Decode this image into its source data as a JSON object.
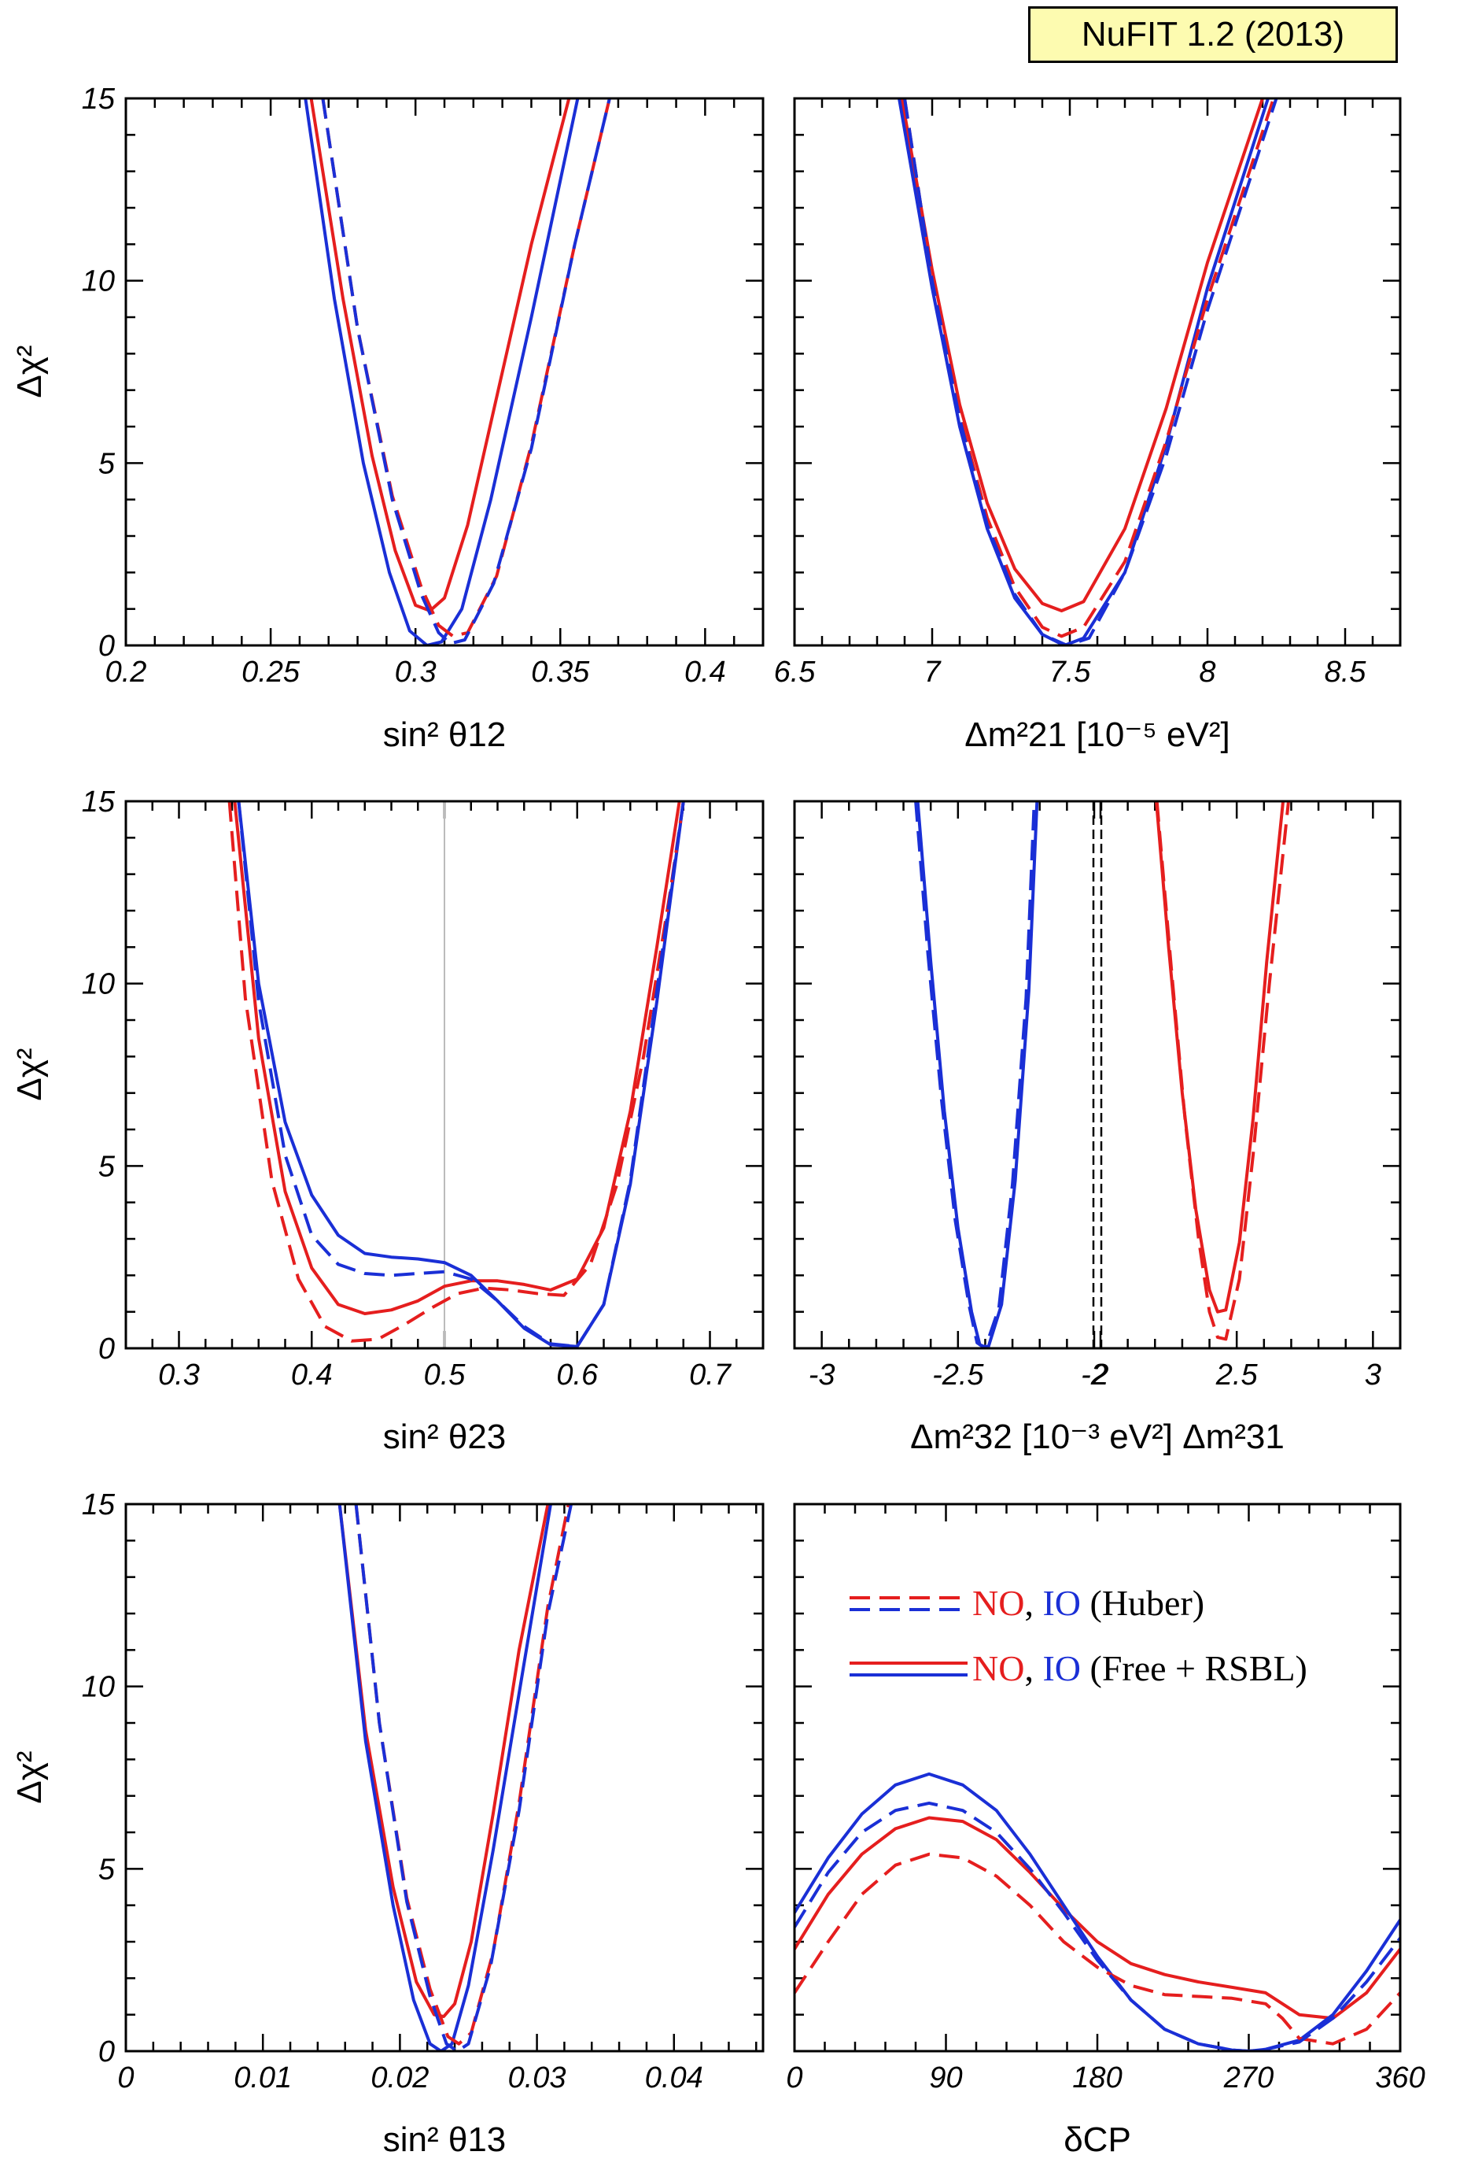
{
  "badge": "NuFIT 1.2 (2013)",
  "colors": {
    "NO": "#e51e1e",
    "IO": "#1a2fd6",
    "axis": "#000000",
    "reference": "#bbbbbb"
  },
  "legend": {
    "huber": {
      "no": "NO",
      "sep": ", ",
      "io": "IO",
      "tag": " (Huber)"
    },
    "free": {
      "no": "NO",
      "sep": ", ",
      "io": "IO",
      "tag": " (Free + RSBL)"
    }
  },
  "chart_data": [
    {
      "id": "s12",
      "type": "line",
      "xlabel": "sin² θ12",
      "ylabel": "Δχ²",
      "xlim": [
        0.2,
        0.42
      ],
      "ylim": [
        0,
        15
      ],
      "xticks": [
        0.2,
        0.25,
        0.3,
        0.35,
        0.4
      ],
      "xtick_labels": [
        "0.2",
        "0.25",
        "0.3",
        "0.35",
        "0.4"
      ],
      "yticks": [
        0,
        5,
        10,
        15
      ],
      "ytick_labels": [
        "0",
        "5",
        "10",
        "15"
      ],
      "series": [
        {
          "group": "NO",
          "style": "solid",
          "x": [
            0.264,
            0.275,
            0.285,
            0.293,
            0.3,
            0.305,
            0.31,
            0.318,
            0.328,
            0.34,
            0.353
          ],
          "y": [
            15,
            9.5,
            5.2,
            2.6,
            1.1,
            0.95,
            1.3,
            3.3,
            6.8,
            11.0,
            15
          ]
        },
        {
          "group": "IO",
          "style": "solid",
          "x": [
            0.262,
            0.272,
            0.282,
            0.291,
            0.298,
            0.304,
            0.309,
            0.316,
            0.326,
            0.34,
            0.356
          ],
          "y": [
            15,
            9.5,
            5.0,
            2.0,
            0.4,
            0.0,
            0.1,
            1.0,
            4.0,
            9.0,
            15
          ]
        },
        {
          "group": "NO",
          "style": "dashed",
          "x": [
            0.268,
            0.28,
            0.292,
            0.302,
            0.308,
            0.313,
            0.318,
            0.328,
            0.34,
            0.355,
            0.367
          ],
          "y": [
            15,
            8.7,
            4.1,
            1.6,
            0.55,
            0.25,
            0.35,
            1.9,
            5.5,
            11.0,
            15
          ]
        },
        {
          "group": "IO",
          "style": "dashed",
          "x": [
            0.268,
            0.28,
            0.292,
            0.302,
            0.308,
            0.312,
            0.317,
            0.327,
            0.34,
            0.355,
            0.367
          ],
          "y": [
            15,
            8.7,
            4.0,
            1.4,
            0.35,
            0.05,
            0.15,
            1.7,
            5.4,
            11.0,
            15
          ]
        }
      ]
    },
    {
      "id": "dm21",
      "type": "line",
      "xlabel": "Δm²21 [10⁻⁵ eV²]",
      "ylabel": "",
      "xlim": [
        6.5,
        8.7
      ],
      "ylim": [
        0,
        15
      ],
      "xticks": [
        6.5,
        7,
        7.5,
        8,
        8.5
      ],
      "xtick_labels": [
        "6.5",
        "7",
        "7.5",
        "8",
        "8.5"
      ],
      "yticks": [
        0,
        5,
        10,
        15
      ],
      "ytick_labels": [
        "",
        "",
        "",
        ""
      ],
      "series": [
        {
          "group": "NO",
          "style": "solid",
          "x": [
            6.89,
            7.0,
            7.1,
            7.2,
            7.3,
            7.4,
            7.47,
            7.55,
            7.7,
            7.85,
            8.0,
            8.2
          ],
          "y": [
            15,
            10.3,
            6.6,
            3.9,
            2.1,
            1.15,
            0.95,
            1.2,
            3.2,
            6.5,
            10.5,
            15
          ]
        },
        {
          "group": "IO",
          "style": "solid",
          "x": [
            6.88,
            7.0,
            7.1,
            7.2,
            7.3,
            7.4,
            7.48,
            7.55,
            7.7,
            7.85,
            8.0,
            8.22
          ],
          "y": [
            15,
            9.8,
            6.0,
            3.2,
            1.3,
            0.3,
            0.0,
            0.2,
            2.0,
            5.5,
            9.8,
            15
          ]
        },
        {
          "group": "NO",
          "style": "dashed",
          "x": [
            6.9,
            7.0,
            7.1,
            7.2,
            7.3,
            7.4,
            7.47,
            7.55,
            7.7,
            7.85,
            8.0,
            8.24
          ],
          "y": [
            15,
            10.0,
            6.3,
            3.5,
            1.6,
            0.5,
            0.25,
            0.5,
            2.3,
            5.6,
            9.5,
            15
          ]
        },
        {
          "group": "IO",
          "style": "dashed",
          "x": [
            6.9,
            7.0,
            7.1,
            7.2,
            7.3,
            7.4,
            7.49,
            7.57,
            7.7,
            7.85,
            8.0,
            8.25
          ],
          "y": [
            15,
            10.0,
            6.2,
            3.3,
            1.4,
            0.3,
            0.0,
            0.2,
            2.0,
            5.2,
            9.2,
            15
          ]
        }
      ]
    },
    {
      "id": "s23",
      "type": "line",
      "xlabel": "sin² θ23",
      "ylabel": "Δχ²",
      "xlim": [
        0.26,
        0.74
      ],
      "ylim": [
        0,
        15
      ],
      "xticks": [
        0.3,
        0.4,
        0.5,
        0.6,
        0.7
      ],
      "xtick_labels": [
        "0.3",
        "0.4",
        "0.5",
        "0.6",
        "0.7"
      ],
      "yticks": [
        0,
        5,
        10,
        15
      ],
      "ytick_labels": [
        "0",
        "5",
        "10",
        "15"
      ],
      "vline": 0.5,
      "series": [
        {
          "group": "NO",
          "style": "solid",
          "x": [
            0.342,
            0.36,
            0.38,
            0.4,
            0.42,
            0.44,
            0.46,
            0.48,
            0.5,
            0.52,
            0.54,
            0.56,
            0.58,
            0.6,
            0.62,
            0.64,
            0.66,
            0.677
          ],
          "y": [
            15,
            8.5,
            4.3,
            2.2,
            1.2,
            0.95,
            1.05,
            1.3,
            1.7,
            1.85,
            1.85,
            1.75,
            1.6,
            1.9,
            3.3,
            6.5,
            11,
            15
          ]
        },
        {
          "group": "IO",
          "style": "solid",
          "x": [
            0.345,
            0.36,
            0.38,
            0.4,
            0.42,
            0.44,
            0.46,
            0.48,
            0.5,
            0.52,
            0.54,
            0.56,
            0.58,
            0.6,
            0.62,
            0.64,
            0.66,
            0.68
          ],
          "y": [
            15,
            10,
            6.2,
            4.2,
            3.1,
            2.6,
            2.5,
            2.45,
            2.35,
            2.0,
            1.3,
            0.55,
            0.1,
            0.05,
            1.2,
            4.5,
            9.5,
            15
          ]
        },
        {
          "group": "NO",
          "style": "dashed",
          "x": [
            0.338,
            0.35,
            0.37,
            0.39,
            0.41,
            0.43,
            0.45,
            0.47,
            0.49,
            0.51,
            0.53,
            0.55,
            0.57,
            0.59,
            0.61,
            0.63,
            0.65,
            0.67,
            0.68
          ],
          "y": [
            15,
            9.6,
            4.6,
            1.9,
            0.6,
            0.2,
            0.25,
            0.65,
            1.1,
            1.5,
            1.65,
            1.6,
            1.5,
            1.45,
            2.3,
            4.5,
            8.0,
            12.5,
            15
          ]
        },
        {
          "group": "IO",
          "style": "dashed",
          "x": [
            0.345,
            0.36,
            0.38,
            0.4,
            0.42,
            0.44,
            0.46,
            0.48,
            0.5,
            0.52,
            0.54,
            0.56,
            0.58,
            0.6,
            0.62,
            0.64,
            0.66,
            0.68
          ],
          "y": [
            15,
            9.5,
            5.3,
            3.1,
            2.3,
            2.05,
            2.0,
            2.05,
            2.1,
            1.9,
            1.3,
            0.6,
            0.12,
            0.05,
            1.2,
            4.6,
            9.8,
            15
          ]
        }
      ]
    },
    {
      "id": "dm3l",
      "type": "line",
      "xlabel": "Δm²32   [10⁻³ eV²]   Δm²31",
      "ylabel": "",
      "xlim": [
        -3.1,
        3.1
      ],
      "ylim": [
        0,
        15
      ],
      "xticks": [
        -3,
        -2.5,
        -2,
        2,
        2.5,
        3
      ],
      "xtick_labels": [
        "-3",
        "-2.5",
        "-2",
        "2",
        "2.5",
        "3"
      ],
      "yticks": [
        0,
        5,
        10,
        15
      ],
      "ytick_labels": [
        "",
        "",
        "",
        ""
      ],
      "axis_break": [
        -2,
        2
      ],
      "series": [
        {
          "group": "IO",
          "style": "solid",
          "x": [
            -2.648,
            -2.6,
            -2.55,
            -2.5,
            -2.45,
            -2.42,
            -2.39,
            -2.34,
            -2.29,
            -2.24,
            -2.21
          ],
          "y": [
            15,
            10.6,
            6.5,
            3.3,
            1.0,
            0.1,
            0.0,
            1.2,
            4.6,
            9.8,
            15
          ]
        },
        {
          "group": "IO",
          "style": "dashed",
          "x": [
            -2.655,
            -2.61,
            -2.56,
            -2.51,
            -2.46,
            -2.43,
            -2.4,
            -2.35,
            -2.3,
            -2.25,
            -2.22
          ],
          "y": [
            15,
            10.8,
            6.8,
            3.5,
            1.2,
            0.15,
            0.0,
            1.1,
            4.5,
            9.6,
            15
          ]
        },
        {
          "group": "NO",
          "style": "solid",
          "x": [
            2.205,
            2.25,
            2.3,
            2.35,
            2.4,
            2.43,
            2.46,
            2.51,
            2.56,
            2.61,
            2.67
          ],
          "y": [
            15,
            11.0,
            7.0,
            3.8,
            1.6,
            1.0,
            1.05,
            2.9,
            6.3,
            10.6,
            15
          ]
        },
        {
          "group": "NO",
          "style": "dashed",
          "x": [
            2.207,
            2.26,
            2.31,
            2.36,
            2.4,
            2.43,
            2.46,
            2.51,
            2.56,
            2.62,
            2.69
          ],
          "y": [
            15,
            10.4,
            6.3,
            3.0,
            1.0,
            0.3,
            0.25,
            1.9,
            5.3,
            10.0,
            15
          ]
        }
      ]
    },
    {
      "id": "s13",
      "type": "line",
      "xlabel": "sin² θ13",
      "ylabel": "Δχ²",
      "xlim": [
        0,
        0.0465
      ],
      "ylim": [
        0,
        15
      ],
      "xticks": [
        0,
        0.01,
        0.02,
        0.03,
        0.04
      ],
      "xtick_labels": [
        "0",
        "0.01",
        "0.02",
        "0.03",
        "0.04"
      ],
      "yticks": [
        0,
        5,
        10,
        15
      ],
      "ytick_labels": [
        "0",
        "5",
        "10",
        "15"
      ],
      "series": [
        {
          "group": "NO",
          "style": "solid",
          "x": [
            0.0156,
            0.0175,
            0.0195,
            0.0212,
            0.0225,
            0.0232,
            0.024,
            0.0252,
            0.0268,
            0.0287,
            0.0308
          ],
          "y": [
            15,
            8.8,
            4.5,
            1.9,
            1.0,
            0.95,
            1.3,
            3.0,
            6.5,
            11.0,
            15
          ]
        },
        {
          "group": "IO",
          "style": "solid",
          "x": [
            0.0156,
            0.0175,
            0.0195,
            0.021,
            0.0222,
            0.023,
            0.0238,
            0.025,
            0.0268,
            0.029,
            0.031
          ],
          "y": [
            15,
            8.5,
            4.0,
            1.4,
            0.2,
            0.0,
            0.2,
            1.8,
            5.5,
            10.5,
            15
          ]
        },
        {
          "group": "NO",
          "style": "dashed",
          "x": [
            0.0168,
            0.0185,
            0.0205,
            0.0222,
            0.0235,
            0.0243,
            0.0252,
            0.0268,
            0.0287,
            0.0308,
            0.0323
          ],
          "y": [
            15,
            9.0,
            4.2,
            1.7,
            0.4,
            0.2,
            0.5,
            2.7,
            6.8,
            12.2,
            15
          ]
        },
        {
          "group": "IO",
          "style": "dashed",
          "x": [
            0.0168,
            0.0185,
            0.0205,
            0.0222,
            0.0234,
            0.0242,
            0.025,
            0.0266,
            0.0287,
            0.0308,
            0.0325
          ],
          "y": [
            15,
            9.0,
            4.1,
            1.5,
            0.2,
            0.0,
            0.2,
            2.3,
            6.6,
            12.0,
            15
          ]
        }
      ]
    },
    {
      "id": "dcp",
      "type": "line",
      "xlabel": "δCP",
      "ylabel": "",
      "xlim": [
        0,
        360
      ],
      "ylim": [
        0,
        15
      ],
      "xticks": [
        0,
        90,
        180,
        270,
        360
      ],
      "xtick_labels": [
        "0",
        "90",
        "180",
        "270",
        "360"
      ],
      "yticks": [
        0,
        5,
        10,
        15
      ],
      "ytick_labels": [
        "",
        "",
        "",
        ""
      ],
      "series": [
        {
          "group": "NO",
          "style": "solid",
          "x": [
            0,
            20,
            40,
            60,
            80,
            100,
            120,
            140,
            160,
            180,
            200,
            220,
            240,
            260,
            280,
            290,
            300,
            320,
            340,
            360
          ],
          "y": [
            2.8,
            4.3,
            5.4,
            6.1,
            6.4,
            6.3,
            5.8,
            4.9,
            3.9,
            3.0,
            2.4,
            2.1,
            1.9,
            1.75,
            1.6,
            1.3,
            1.0,
            0.9,
            1.6,
            2.8
          ]
        },
        {
          "group": "IO",
          "style": "solid",
          "x": [
            0,
            20,
            40,
            60,
            80,
            100,
            120,
            140,
            160,
            180,
            200,
            220,
            240,
            260,
            270,
            280,
            300,
            320,
            340,
            360
          ],
          "y": [
            3.8,
            5.3,
            6.5,
            7.3,
            7.6,
            7.3,
            6.6,
            5.4,
            4.0,
            2.6,
            1.4,
            0.6,
            0.2,
            0.03,
            0.0,
            0.05,
            0.3,
            1.0,
            2.2,
            3.6
          ]
        },
        {
          "group": "NO",
          "style": "dashed",
          "x": [
            0,
            20,
            40,
            60,
            80,
            100,
            120,
            140,
            160,
            180,
            200,
            220,
            240,
            260,
            280,
            290,
            300,
            320,
            340,
            360
          ],
          "y": [
            1.6,
            3.0,
            4.3,
            5.1,
            5.4,
            5.3,
            4.8,
            4.0,
            3.0,
            2.3,
            1.8,
            1.55,
            1.5,
            1.45,
            1.3,
            0.9,
            0.35,
            0.2,
            0.6,
            1.6
          ]
        },
        {
          "group": "IO",
          "style": "dashed",
          "x": [
            0,
            20,
            40,
            60,
            80,
            100,
            120,
            140,
            160,
            180,
            200,
            220,
            240,
            260,
            270,
            280,
            300,
            320,
            340,
            360
          ],
          "y": [
            3.4,
            4.9,
            6.0,
            6.6,
            6.8,
            6.6,
            6.0,
            5.0,
            3.8,
            2.5,
            1.4,
            0.6,
            0.2,
            0.03,
            0.0,
            0.05,
            0.25,
            0.9,
            1.9,
            3.1
          ]
        }
      ]
    }
  ]
}
